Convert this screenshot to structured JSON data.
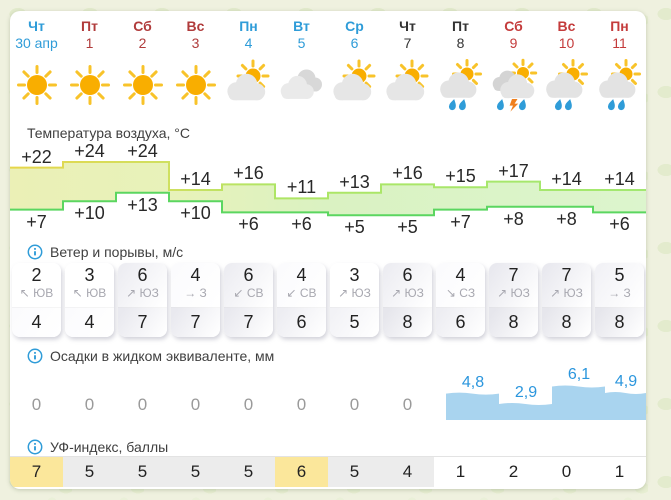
{
  "accent": "#2f9cd8",
  "page_background": "#eff1df",
  "panel_background": "#ffffff",
  "days": [
    {
      "dow": "Чт",
      "date": "30 апр",
      "color": "#2f9cd8",
      "icon": "sun"
    },
    {
      "dow": "Пт",
      "date": "1",
      "color": "#b03b3b",
      "icon": "sun"
    },
    {
      "dow": "Сб",
      "date": "2",
      "color": "#b03b3b",
      "icon": "sun"
    },
    {
      "dow": "Вс",
      "date": "3",
      "color": "#b03b3b",
      "icon": "sun"
    },
    {
      "dow": "Пн",
      "date": "4",
      "color": "#2f9cd8",
      "icon": "sun-cloud"
    },
    {
      "dow": "Вт",
      "date": "5",
      "color": "#2f9cd8",
      "icon": "cloud"
    },
    {
      "dow": "Ср",
      "date": "6",
      "color": "#2f9cd8",
      "icon": "sun-cloud"
    },
    {
      "dow": "Чт",
      "date": "7",
      "color": "#333333",
      "icon": "sun-cloud"
    },
    {
      "dow": "Пт",
      "date": "8",
      "color": "#333333",
      "icon": "sun-cloud-rain"
    },
    {
      "dow": "Сб",
      "date": "9",
      "color": "#c43b3b",
      "icon": "sun-cloud-storm"
    },
    {
      "dow": "Вс",
      "date": "10",
      "color": "#c43b3b",
      "icon": "sun-cloud-rain"
    },
    {
      "dow": "Пн",
      "date": "11",
      "color": "#c43b3b",
      "icon": "sun-cloud-rain"
    }
  ],
  "sections": {
    "temperature": {
      "title": "Температура воздуха, °C"
    },
    "wind": {
      "title": "Ветер и порывы, м/с",
      "speed": [
        2,
        3,
        6,
        4,
        6,
        4,
        3,
        6,
        4,
        7,
        7,
        5
      ],
      "gust": [
        4,
        4,
        7,
        7,
        7,
        6,
        5,
        8,
        6,
        8,
        8,
        8
      ],
      "dir": [
        "ЮВ",
        "ЮВ",
        "ЮЗ",
        "З",
        "СВ",
        "СВ",
        "ЮЗ",
        "ЮЗ",
        "СЗ",
        "ЮЗ",
        "ЮЗ",
        "З"
      ],
      "arrow": [
        "↖",
        "↖",
        "↗",
        "→",
        "↙",
        "↙",
        "↗",
        "↗",
        "↘",
        "↗",
        "↗",
        "→"
      ]
    },
    "precipitation": {
      "title": "Осадки в жидком эквиваленте, мм"
    },
    "uv": {
      "title": "УФ-индекс, баллы",
      "colors": {
        "high": "#fbe79b",
        "moderate": "#ececec",
        "low": "#ffffff"
      }
    }
  },
  "chart_data": [
    {
      "type": "area",
      "title": "Температура воздуха, °C",
      "categories": [
        "Чт 30 апр",
        "Пт 1",
        "Сб 2",
        "Вс 3",
        "Пн 4",
        "Вт 5",
        "Ср 6",
        "Чт 7",
        "Пт 8",
        "Сб 9",
        "Вс 10",
        "Пн 11"
      ],
      "series": [
        {
          "name": "Максимальная температура",
          "values": [
            22,
            24,
            24,
            14,
            16,
            11,
            13,
            16,
            15,
            17,
            14,
            14
          ]
        },
        {
          "name": "Минимальная температура",
          "values": [
            7,
            10,
            13,
            10,
            6,
            6,
            5,
            5,
            7,
            8,
            8,
            6
          ]
        }
      ],
      "value_prefix": "+",
      "band_fill": [
        "#ebf0b6",
        "#e7f2ba",
        "#daf2c2",
        "#dcf5cd"
      ],
      "top_line": [
        "#e7d64a",
        "#cfe060",
        "#aee565",
        "#a2e870"
      ],
      "bottom_line": "#5bd660"
    },
    {
      "type": "area",
      "title": "Осадки в жидком эквиваленте, мм",
      "values": [
        0,
        0,
        0,
        0,
        0,
        0,
        0,
        0,
        4.8,
        2.9,
        6.1,
        4.9
      ],
      "values_display": [
        "0",
        "0",
        "0",
        "0",
        "0",
        "0",
        "0",
        "0",
        "4,8",
        "2,9",
        "6,1",
        "4,9"
      ],
      "fill": "#a9d4ef",
      "label_color": "#2b96dd"
    },
    {
      "type": "bar",
      "title": "УФ-индекс, баллы",
      "values": [
        7,
        5,
        5,
        5,
        5,
        6,
        5,
        4,
        1,
        2,
        0,
        1
      ]
    }
  ]
}
